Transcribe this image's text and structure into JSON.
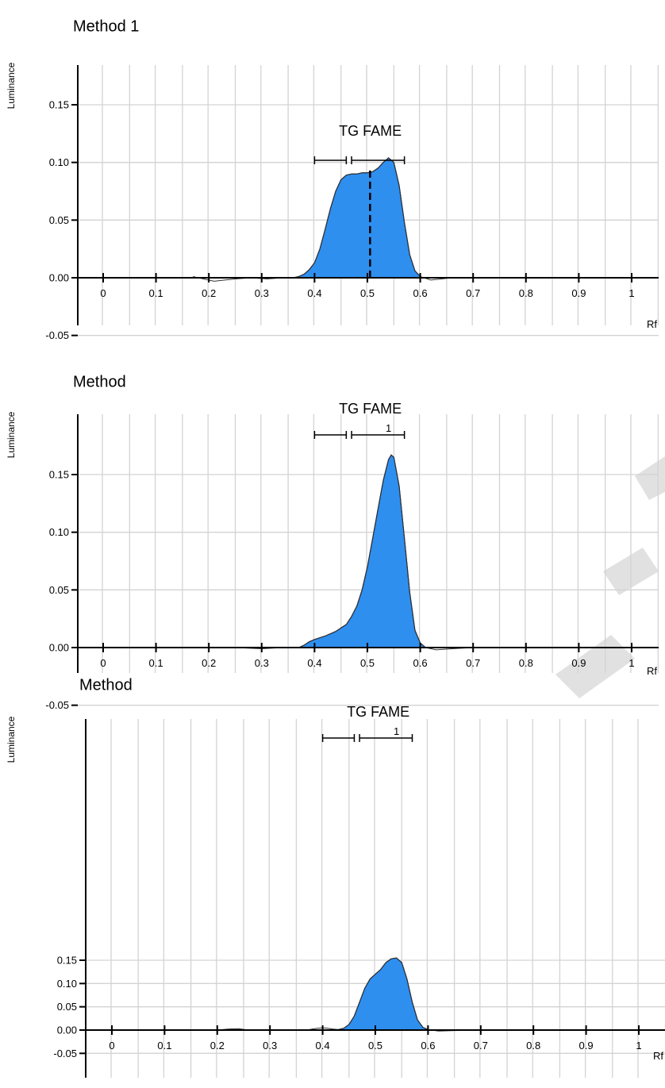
{
  "chart_data": [
    {
      "type": "area",
      "title": "Method 1",
      "xlabel": "Rf",
      "ylabel": "Luminance",
      "xlim": [
        0,
        1
      ],
      "ylim": [
        -0.05,
        0.18
      ],
      "grid": true,
      "x_ticks": [
        "0",
        "0.1",
        "0.2",
        "0.3",
        "0.4",
        "0.5",
        "0.6",
        "0.7",
        "0.8",
        "0.9",
        "1"
      ],
      "y_ticks": [
        "-0.05",
        "0.00",
        "0.05",
        "0.10",
        "0.15"
      ],
      "annotation": "TG FAME",
      "peak_label": "",
      "brackets": [
        [
          0.4,
          0.46
        ],
        [
          0.47,
          0.57
        ]
      ],
      "dashed_line_x": 0.505,
      "fill_range": [
        0.36,
        0.6
      ],
      "series": [
        {
          "x": [
            0.17,
            0.19,
            0.21,
            0.23,
            0.25,
            0.28,
            0.31,
            0.34,
            0.36,
            0.37,
            0.38,
            0.39,
            0.4,
            0.41,
            0.42,
            0.43,
            0.44,
            0.45,
            0.46,
            0.47,
            0.48,
            0.49,
            0.5,
            0.51,
            0.52,
            0.53,
            0.54,
            0.55,
            0.56,
            0.57,
            0.58,
            0.59,
            0.6,
            0.62,
            0.64,
            0.66
          ],
          "y": [
            0.001,
            -0.001,
            -0.003,
            -0.002,
            -0.001,
            0.0,
            -0.001,
            0.0,
            0.0,
            0.001,
            0.003,
            0.007,
            0.013,
            0.025,
            0.042,
            0.06,
            0.075,
            0.085,
            0.089,
            0.09,
            0.09,
            0.091,
            0.091,
            0.092,
            0.095,
            0.1,
            0.104,
            0.1,
            0.08,
            0.048,
            0.02,
            0.006,
            0.001,
            -0.002,
            -0.001,
            0.0
          ]
        }
      ]
    },
    {
      "type": "area",
      "title": "Method",
      "xlabel": "Rf",
      "ylabel": "Luminance",
      "xlim": [
        0,
        1
      ],
      "ylim": [
        -0.05,
        0.18
      ],
      "grid": true,
      "x_ticks": [
        "0",
        "0.1",
        "0.2",
        "0.3",
        "0.4",
        "0.5",
        "0.6",
        "0.7",
        "0.8",
        "0.9",
        "1"
      ],
      "y_ticks": [
        "-0.05",
        "0.00",
        "0.05",
        "0.10",
        "0.15"
      ],
      "annotation": "TG FAME",
      "peak_label": "1",
      "brackets": [
        [
          0.4,
          0.46
        ],
        [
          0.47,
          0.57
        ]
      ],
      "dashed_line_x": null,
      "fill_range": [
        0.37,
        0.61
      ],
      "series": [
        {
          "x": [
            0.15,
            0.2,
            0.25,
            0.3,
            0.34,
            0.37,
            0.38,
            0.39,
            0.4,
            0.42,
            0.44,
            0.45,
            0.46,
            0.47,
            0.48,
            0.49,
            0.5,
            0.51,
            0.52,
            0.53,
            0.54,
            0.545,
            0.55,
            0.56,
            0.57,
            0.58,
            0.59,
            0.6,
            0.61,
            0.63,
            0.66,
            0.7
          ],
          "y": [
            0.0,
            0.0,
            0.0,
            -0.001,
            0.0,
            0.0,
            0.002,
            0.005,
            0.007,
            0.01,
            0.014,
            0.017,
            0.02,
            0.027,
            0.036,
            0.05,
            0.07,
            0.095,
            0.12,
            0.145,
            0.163,
            0.167,
            0.165,
            0.14,
            0.095,
            0.048,
            0.015,
            0.004,
            0.0,
            -0.002,
            -0.001,
            0.0
          ]
        }
      ]
    },
    {
      "type": "area",
      "title": "Method",
      "xlabel": "Rf",
      "ylabel": "Luminance",
      "xlim": [
        0,
        1
      ],
      "ylim": [
        -0.05,
        0.18
      ],
      "grid": true,
      "x_ticks": [
        "0",
        "0.1",
        "0.2",
        "0.3",
        "0.4",
        "0.5",
        "0.6",
        "0.7",
        "0.8",
        "0.9",
        "1"
      ],
      "y_ticks": [
        "-0.05",
        "0.00",
        "0.05",
        "0.10",
        "0.15"
      ],
      "annotation": "TG FAME",
      "peak_label": "1",
      "brackets": [
        [
          0.4,
          0.46
        ],
        [
          0.47,
          0.57
        ]
      ],
      "dashed_line_x": null,
      "fill_range": [
        0.43,
        0.6
      ],
      "series": [
        {
          "x": [
            0.18,
            0.2,
            0.22,
            0.24,
            0.26,
            0.3,
            0.34,
            0.37,
            0.38,
            0.39,
            0.4,
            0.41,
            0.42,
            0.43,
            0.44,
            0.45,
            0.46,
            0.47,
            0.48,
            0.49,
            0.5,
            0.51,
            0.52,
            0.53,
            0.54,
            0.55,
            0.56,
            0.57,
            0.58,
            0.59,
            0.6,
            0.62,
            0.65,
            0.7
          ],
          "y": [
            0.0,
            0.0,
            0.002,
            0.003,
            0.0,
            0.0,
            0.0,
            0.0,
            0.002,
            0.004,
            0.005,
            0.004,
            0.002,
            0.001,
            0.004,
            0.012,
            0.03,
            0.06,
            0.09,
            0.11,
            0.12,
            0.13,
            0.145,
            0.153,
            0.155,
            0.145,
            0.11,
            0.06,
            0.022,
            0.006,
            0.001,
            -0.002,
            -0.001,
            0.0
          ]
        }
      ]
    }
  ]
}
